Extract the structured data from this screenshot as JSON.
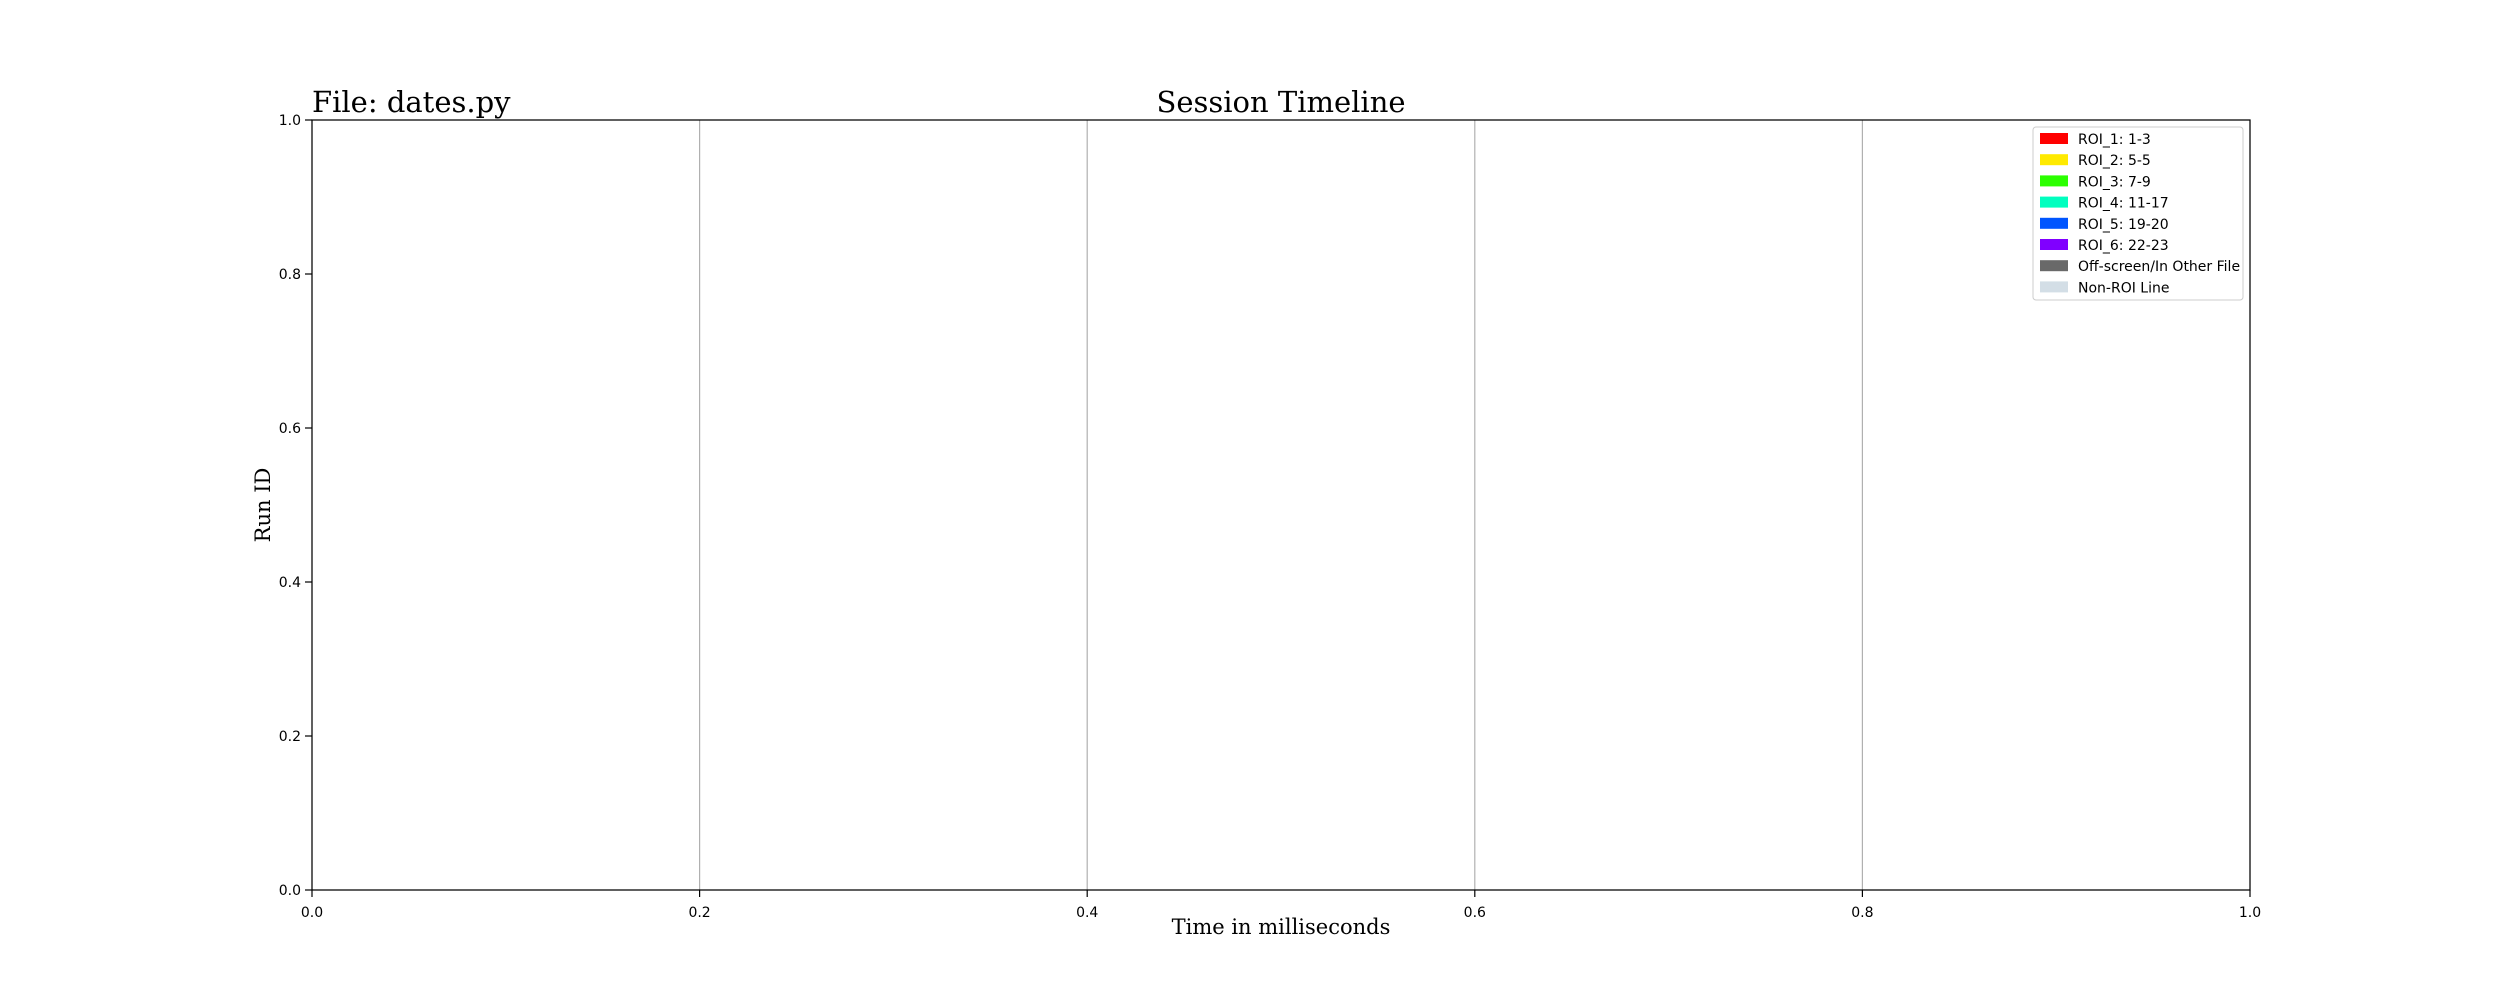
{
  "chart_data": {
    "type": "bar",
    "orientation": "horizontal",
    "title": "Session Timeline",
    "file_label": "File: dates.py",
    "xlabel": "Time in milliseconds",
    "ylabel": "Run ID",
    "xlim": [
      0.0,
      1.0
    ],
    "ylim": [
      0.0,
      1.0
    ],
    "x_ticks": [
      "0.0",
      "0.2",
      "0.4",
      "0.6",
      "0.8",
      "1.0"
    ],
    "y_ticks": [
      "0.0",
      "0.2",
      "0.4",
      "0.6",
      "0.8",
      "1.0"
    ],
    "grid": {
      "x": true,
      "y": false
    },
    "legend_position": "top-right",
    "legend": [
      {
        "label": "ROI_1: 1-3",
        "color": "#ff0000"
      },
      {
        "label": "ROI_2: 5-5",
        "color": "#ffea00"
      },
      {
        "label": "ROI_3: 7-9",
        "color": "#2bff00"
      },
      {
        "label": "ROI_4: 11-17",
        "color": "#00ffbf"
      },
      {
        "label": "ROI_5: 19-20",
        "color": "#0055ff"
      },
      {
        "label": "ROI_6: 22-23",
        "color": "#8000ff"
      },
      {
        "label": "Off-screen/In Other File",
        "color": "#696969"
      },
      {
        "label": "Non-ROI Line",
        "color": "#d3dee6"
      }
    ],
    "series": []
  }
}
